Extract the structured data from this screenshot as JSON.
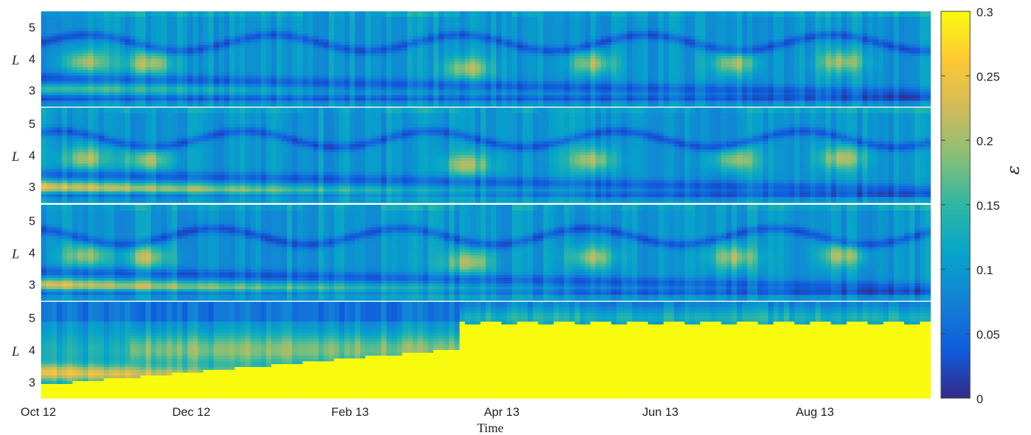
{
  "chart_data": {
    "type": "heatmap",
    "x_axis": {
      "label": "Time",
      "tick_labels": [
        "Oct 12",
        "Dec 12",
        "Feb 13",
        "Apr 13",
        "Jun 13",
        "Aug 13"
      ]
    },
    "colorbar": {
      "label": "ε",
      "range": [
        0,
        0.3
      ],
      "tick_labels": [
        "0",
        "0.05",
        "0.1",
        "0.15",
        "0.2",
        "0.25",
        "0.3"
      ],
      "colormap": "parula",
      "stops": [
        "#352a87",
        "#0f5cdd",
        "#1481d6",
        "#06a4ca",
        "#2eb7a4",
        "#87bf77",
        "#d1bb59",
        "#fec832",
        "#f9fb0e"
      ]
    },
    "panels": [
      {
        "ylabel": "L",
        "ytick_labels": [
          "3",
          "4",
          "5"
        ],
        "ylim": [
          2.5,
          5.5
        ],
        "features": "structured, mostly low error (0.02-0.15) with isolated hot spots ~0.25 near L=4"
      },
      {
        "ylabel": "L",
        "ytick_labels": [
          "3",
          "4",
          "5"
        ],
        "ylim": [
          2.5,
          5.5
        ],
        "features": "similar structure, elevated error band at low L through Feb 13"
      },
      {
        "ylabel": "L",
        "ytick_labels": [
          "3",
          "4",
          "5"
        ],
        "ylim": [
          2.5,
          5.5
        ],
        "features": "similar structure to panel 2"
      },
      {
        "ylabel": "L",
        "ytick_labels": [
          "3",
          "4",
          "5"
        ],
        "ylim": [
          2.5,
          5.5
        ],
        "features": "error saturated at 0.3 for L < 4.8 after Mar 13"
      }
    ]
  }
}
